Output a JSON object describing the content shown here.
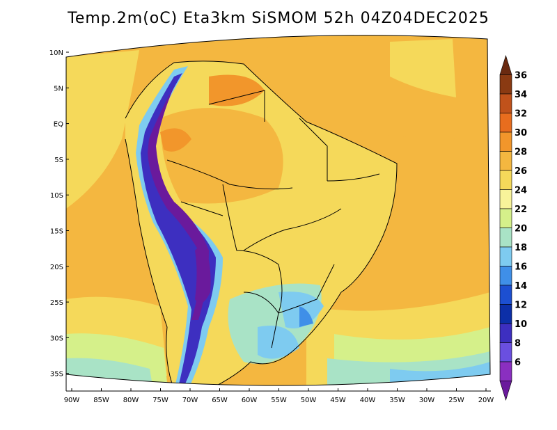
{
  "title": "Temp.2m(oC) Eta3km SiSMOM 52h 04Z04DEC2025",
  "map": {
    "lat_labels": [
      "10N",
      "5N",
      "EQ",
      "5S",
      "10S",
      "15S",
      "20S",
      "25S",
      "30S",
      "35S"
    ],
    "lon_labels": [
      "90W",
      "85W",
      "80W",
      "75W",
      "70W",
      "65W",
      "60W",
      "55W",
      "50W",
      "45W",
      "40W",
      "35W",
      "30W",
      "25W",
      "20W"
    ]
  },
  "colorbar": {
    "labels": [
      "36",
      "34",
      "32",
      "30",
      "28",
      "26",
      "24",
      "22",
      "20",
      "18",
      "16",
      "14",
      "12",
      "10",
      "8",
      "6"
    ],
    "colors": [
      "#6a2a10",
      "#8a3a12",
      "#c0521b",
      "#e86d1e",
      "#f2962b",
      "#f4b740",
      "#f5d95a",
      "#f8f39a",
      "#d5f08a",
      "#a9e3c6",
      "#7ecbf0",
      "#3f8fe8",
      "#1c4fd1",
      "#0c2fa8",
      "#3d2fc0",
      "#6a4fe0",
      "#8a2fc0",
      "#6a1a9c"
    ]
  }
}
